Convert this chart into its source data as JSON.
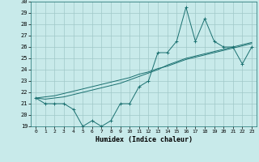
{
  "xlabel": "Humidex (Indice chaleur)",
  "bg_color": "#c8eaea",
  "grid_color": "#a0c8c8",
  "line_color": "#1a7070",
  "x_data": [
    0,
    1,
    2,
    3,
    4,
    5,
    6,
    7,
    8,
    9,
    10,
    11,
    12,
    13,
    14,
    15,
    16,
    17,
    18,
    19,
    20,
    21,
    22,
    23
  ],
  "y_series1": [
    21.5,
    21.0,
    21.0,
    21.0,
    20.5,
    19.0,
    19.5,
    19.0,
    19.5,
    21.0,
    21.0,
    22.5,
    23.0,
    25.5,
    25.5,
    26.5,
    29.5,
    26.5,
    28.5,
    26.5,
    26.0,
    26.0,
    24.5,
    26.0
  ],
  "y_line1": [
    21.5,
    21.6,
    21.7,
    21.9,
    22.1,
    22.3,
    22.5,
    22.7,
    22.9,
    23.1,
    23.3,
    23.6,
    23.8,
    24.1,
    24.3,
    24.6,
    24.9,
    25.1,
    25.3,
    25.5,
    25.7,
    25.9,
    26.1,
    26.3
  ],
  "y_line2": [
    21.5,
    21.4,
    21.5,
    21.6,
    21.8,
    22.0,
    22.2,
    22.4,
    22.6,
    22.8,
    23.1,
    23.4,
    23.7,
    24.0,
    24.4,
    24.7,
    25.0,
    25.2,
    25.4,
    25.6,
    25.8,
    26.0,
    26.2,
    26.4
  ],
  "ylim": [
    19,
    30
  ],
  "xlim_min": -0.5,
  "xlim_max": 23.5,
  "yticks": [
    19,
    20,
    21,
    22,
    23,
    24,
    25,
    26,
    27,
    28,
    29,
    30
  ],
  "xticks": [
    0,
    1,
    2,
    3,
    4,
    5,
    6,
    7,
    8,
    9,
    10,
    11,
    12,
    13,
    14,
    15,
    16,
    17,
    18,
    19,
    20,
    21,
    22,
    23
  ],
  "tick_fontsize": 5,
  "xlabel_fontsize": 6
}
